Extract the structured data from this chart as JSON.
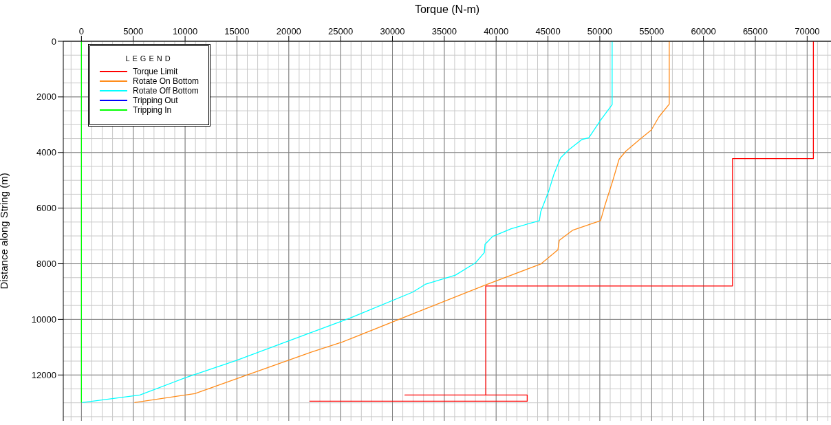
{
  "chart_data": {
    "type": "line",
    "xlabel": "Torque (N-m)",
    "ylabel": "Distance along String (m)",
    "legend_title": "LEGEND",
    "legend": "top left",
    "grid": true,
    "marker": "none",
    "line_style": "solid",
    "xlim": [
      -1750,
      72300
    ],
    "xticks": [
      0,
      5000,
      10000,
      15000,
      20000,
      25000,
      30000,
      35000,
      40000,
      45000,
      50000,
      55000,
      60000,
      65000,
      70000
    ],
    "ylim": [
      13650,
      0
    ],
    "yticks": [
      0,
      2000,
      4000,
      6000,
      8000,
      10000,
      12000
    ],
    "series": [
      {
        "name": "Torque Limit",
        "color": "#ff0000",
        "x": [
          70600,
          70600,
          62800,
          62800,
          39000,
          39000,
          31200,
          43000,
          43000,
          22000
        ],
        "values": [
          0,
          4220,
          4220,
          8800,
          8800,
          12720,
          12720,
          12720,
          12940,
          12940
        ]
      },
      {
        "name": "Rotate On Bottom",
        "color": "#ff8c1a",
        "x": [
          56700,
          56700,
          55700,
          54970,
          53910,
          52520,
          51860,
          51260,
          50470,
          50070,
          47410,
          46090,
          45960,
          44300,
          38930,
          31960,
          25200,
          22150,
          16050,
          10940,
          5110
        ],
        "values": [
          0,
          2260,
          2720,
          3190,
          3510,
          3950,
          4240,
          5000,
          5930,
          6450,
          6790,
          7160,
          7500,
          8010,
          8770,
          9800,
          10810,
          11180,
          11990,
          12670,
          12990
        ]
      },
      {
        "name": "Rotate Off Bottom",
        "color": "#00ffff",
        "x": [
          51190,
          51190,
          50070,
          48940,
          48280,
          47010,
          46220,
          45560,
          45090,
          44300,
          44170,
          41450,
          39660,
          38930,
          38860,
          38000,
          36070,
          33220,
          31960,
          25930,
          20090,
          14990,
          9950,
          5640,
          70
        ],
        "values": [
          0,
          2280,
          2840,
          3470,
          3530,
          3900,
          4190,
          4800,
          5370,
          6130,
          6450,
          6740,
          7020,
          7300,
          7600,
          7970,
          8410,
          8730,
          9020,
          9950,
          10760,
          11470,
          12110,
          12720,
          12990
        ]
      },
      {
        "name": "Tripping Out",
        "color": "#0000ff"
      },
      {
        "name": "Tripping In",
        "color": "#00ff00",
        "x": [
          0,
          0
        ],
        "values": [
          0,
          12990
        ]
      }
    ]
  }
}
